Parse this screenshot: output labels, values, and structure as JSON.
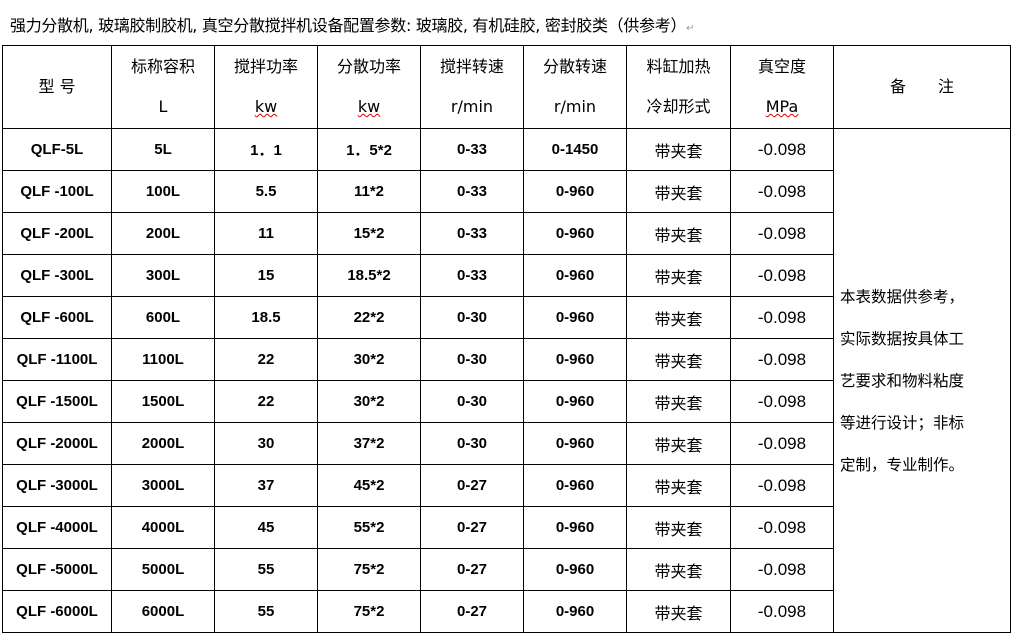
{
  "title": "强力分散机, 玻璃胶制胶机, 真空分散搅拌机设备配置参数: 玻璃胶, 有机硅胶, 密封胶类（供参考）",
  "headers": [
    {
      "l1": "型  号",
      "l2": ""
    },
    {
      "l1": "标称容积",
      "l2": "L"
    },
    {
      "l1": "搅拌功率",
      "l2": "kw"
    },
    {
      "l1": "分散功率",
      "l2": "kw"
    },
    {
      "l1": "搅拌转速",
      "l2": "r/min"
    },
    {
      "l1": "分散转速",
      "l2": "r/min"
    },
    {
      "l1": "料缸加热",
      "l2": "冷却形式"
    },
    {
      "l1": "真空度",
      "l2": "MPa"
    },
    {
      "l1": "备　　注",
      "l2": ""
    }
  ],
  "rows": [
    [
      "QLF-5L",
      "5L",
      "1．1",
      "1．5*2",
      "0-33",
      "0-1450",
      "带夹套",
      "-0.098"
    ],
    [
      "QLF -100L",
      "100L",
      "5.5",
      "11*2",
      "0-33",
      "0-960",
      "带夹套",
      "-0.098"
    ],
    [
      "QLF -200L",
      "200L",
      "11",
      "15*2",
      "0-33",
      "0-960",
      "带夹套",
      "-0.098"
    ],
    [
      "QLF -300L",
      "300L",
      "15",
      "18.5*2",
      "0-33",
      "0-960",
      "带夹套",
      "-0.098"
    ],
    [
      "QLF -600L",
      "600L",
      "18.5",
      "22*2",
      "0-30",
      "0-960",
      "带夹套",
      "-0.098"
    ],
    [
      "QLF -1100L",
      "1100L",
      "22",
      "30*2",
      "0-30",
      "0-960",
      "带夹套",
      "-0.098"
    ],
    [
      "QLF -1500L",
      "1500L",
      "22",
      "30*2",
      "0-30",
      "0-960",
      "带夹套",
      "-0.098"
    ],
    [
      "QLF -2000L",
      "2000L",
      "30",
      "37*2",
      "0-30",
      "0-960",
      "带夹套",
      "-0.098"
    ],
    [
      "QLF -3000L",
      "3000L",
      "37",
      "45*2",
      "0-27",
      "0-960",
      "带夹套",
      "-0.098"
    ],
    [
      "QLF -4000L",
      "4000L",
      "45",
      "55*2",
      "0-27",
      "0-960",
      "带夹套",
      "-0.098"
    ],
    [
      "QLF -5000L",
      "5000L",
      "55",
      "75*2",
      "0-27",
      "0-960",
      "带夹套",
      "-0.098"
    ],
    [
      "QLF -6000L",
      "6000L",
      "55",
      "75*2",
      "0-27",
      "0-960",
      "带夹套",
      "-0.098"
    ]
  ],
  "note": [
    "本表数据供参考，",
    "实际数据按具体工",
    "艺要求和物料粘度",
    "等进行设计；非标",
    "定制，专业制作。"
  ]
}
